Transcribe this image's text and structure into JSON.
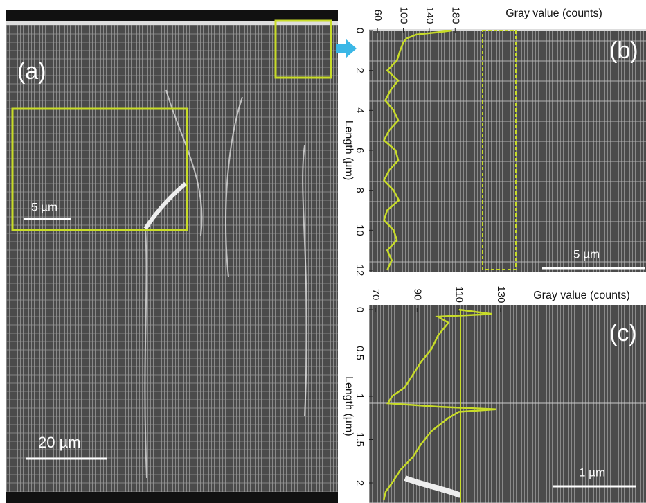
{
  "panels": [
    {
      "label": "(a)",
      "scale_bar": "20 µm",
      "inset_scale_bar": "5 µm"
    },
    {
      "label": "(b)",
      "scale_bar": "5 µm"
    },
    {
      "label": "(c)",
      "scale_bar": "1 µm"
    }
  ],
  "chart_data": [
    {
      "type": "line",
      "orientation": "horizontal",
      "xlabel": "Length (µm)",
      "ylabel": "Gray value (counts)",
      "x": [
        0,
        0.1,
        0.2,
        0.4,
        0.6,
        1,
        1.5,
        2,
        2.5,
        3,
        3.5,
        4,
        4.5,
        5,
        5.5,
        6,
        6.5,
        7,
        7.5,
        8,
        8.5,
        9,
        9.5,
        10,
        10.5,
        11,
        11.5,
        12
      ],
      "series": [
        {
          "color": "#c8dc28",
          "values": [
            175,
            150,
            120,
            105,
            100,
            95,
            90,
            75,
            92,
            80,
            72,
            85,
            92,
            78,
            70,
            88,
            92,
            78,
            70,
            85,
            93,
            75,
            70,
            85,
            90,
            75,
            82,
            75
          ]
        }
      ],
      "xlim": [
        0,
        12
      ],
      "xticks": [
        0,
        2,
        4,
        6,
        8,
        10,
        12
      ],
      "ylim": [
        47,
        215
      ],
      "yticks": [
        60,
        100,
        140,
        180
      ]
    },
    {
      "type": "line",
      "orientation": "horizontal",
      "xlabel": "Length (µm)",
      "ylabel": "Gray value (counts)",
      "x": [
        0,
        0.05,
        0.08,
        0.15,
        0.3,
        0.45,
        0.6,
        0.75,
        0.9,
        1.0,
        1.08,
        1.12,
        1.15,
        1.18,
        1.25,
        1.4,
        1.55,
        1.7,
        1.85,
        2.0,
        2.1,
        2.2
      ],
      "series": [
        {
          "color": "#c8dc28",
          "values": [
            110,
            126,
            100,
            105,
            100,
            97,
            92,
            88,
            84,
            78,
            76,
            100,
            128,
            110,
            105,
            97,
            92,
            88,
            82,
            78,
            75,
            74
          ]
        }
      ],
      "xlim": [
        0,
        2.23
      ],
      "xticks": [
        0,
        0.5,
        1,
        1.5,
        2
      ],
      "ylim": [
        67,
        139
      ],
      "yticks": [
        70,
        90,
        110,
        130
      ]
    }
  ]
}
